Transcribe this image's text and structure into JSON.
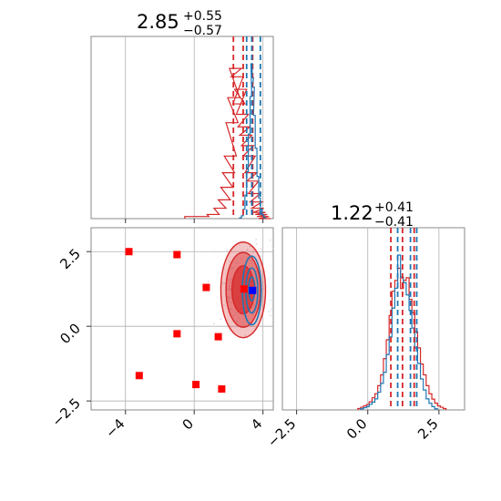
{
  "chart_data": {
    "type": "corner-plot",
    "colors": {
      "red": "#d62728",
      "blue": "#1f77b4",
      "marker_red": "#ff0000",
      "marker_blue": "#0000ff",
      "grid": "#b0b0b0"
    },
    "param1": {
      "title_main": "2.85",
      "title_plus": "+0.55",
      "title_minus": "−0.57",
      "xlim": [
        -6,
        4.6
      ],
      "ticks": [
        -4,
        0,
        4
      ],
      "tick_labels": [
        "−4",
        "0",
        "4"
      ],
      "quantiles_red": [
        2.28,
        2.85,
        3.4
      ],
      "quantiles_blue": [
        3.05,
        3.35,
        3.85
      ]
    },
    "param2": {
      "title_main": "1.22",
      "title_plus": "+0.41",
      "title_minus": "−0.41",
      "xlim": [
        -3.0,
        3.4
      ],
      "ticks": [
        -2.5,
        0.0,
        2.5
      ],
      "tick_labels": [
        "−2.5",
        "0.0",
        "2.5"
      ],
      "ylim": [
        -2.8,
        3.3
      ],
      "yticks": [
        -2.5,
        0.0,
        2.5
      ],
      "ytick_labels": [
        "−2.5",
        "0.0",
        "2.5"
      ],
      "quantiles_red": [
        0.81,
        1.22,
        1.63
      ],
      "quantiles_blue": [
        1.05,
        1.5,
        1.72
      ]
    },
    "hist1_red": {
      "x": [
        -0.2,
        0.5,
        1.1,
        1.5,
        1.75,
        1.9,
        2.0,
        2.1,
        2.2,
        2.3,
        2.4,
        2.5,
        2.6,
        2.7,
        2.8,
        2.9,
        3.0,
        3.1,
        3.2,
        3.3,
        3.4,
        3.5,
        3.6,
        3.7,
        3.8,
        3.9,
        4.0,
        4.1
      ],
      "y": [
        1,
        1,
        2,
        5,
        9,
        15,
        22,
        30,
        46,
        58,
        72,
        68,
        55,
        62,
        50,
        44,
        40,
        35,
        30,
        22,
        18,
        12,
        8,
        5,
        3,
        2,
        1,
        0
      ]
    },
    "hist1_blue": {
      "x": [
        2.7,
        2.8,
        2.9,
        3.0,
        3.1,
        3.2,
        3.3,
        3.35,
        3.4,
        3.45,
        3.5,
        3.6,
        3.7,
        3.8,
        3.9,
        4.0,
        4.1
      ],
      "y": [
        1,
        3,
        10,
        25,
        50,
        90,
        130,
        165,
        150,
        140,
        110,
        75,
        45,
        22,
        10,
        4,
        1
      ]
    },
    "hist2_red": {
      "x": [
        -0.3,
        -0.2,
        -0.1,
        0.0,
        0.1,
        0.2,
        0.3,
        0.4,
        0.5,
        0.6,
        0.7,
        0.8,
        0.9,
        1.0,
        1.1,
        1.2,
        1.3,
        1.4,
        1.5,
        1.6,
        1.7,
        1.8,
        1.9,
        2.0,
        2.1,
        2.2,
        2.3,
        2.4,
        2.5,
        2.6,
        2.7
      ],
      "y": [
        1,
        2,
        3,
        4,
        6,
        9,
        12,
        18,
        26,
        38,
        52,
        70,
        88,
        96,
        105,
        90,
        96,
        98,
        82,
        72,
        58,
        46,
        34,
        26,
        18,
        12,
        8,
        5,
        3,
        2,
        1
      ]
    },
    "hist2_blue": {
      "x": [
        -0.2,
        -0.1,
        0.0,
        0.1,
        0.2,
        0.3,
        0.4,
        0.5,
        0.6,
        0.7,
        0.8,
        0.9,
        1.0,
        1.1,
        1.2,
        1.3,
        1.4,
        1.5,
        1.6,
        1.7,
        1.8,
        1.9,
        2.0,
        2.1,
        2.2,
        2.3,
        2.4
      ],
      "y": [
        1,
        2,
        3,
        5,
        7,
        10,
        16,
        24,
        34,
        50,
        66,
        92,
        110,
        140,
        120,
        115,
        104,
        90,
        74,
        56,
        42,
        28,
        18,
        10,
        6,
        3,
        1
      ]
    },
    "red_markers": [
      [
        -3.8,
        2.5
      ],
      [
        -1.0,
        2.4
      ],
      [
        0.7,
        1.3
      ],
      [
        2.9,
        1.25
      ],
      [
        -1.0,
        -0.25
      ],
      [
        1.4,
        -0.35
      ],
      [
        -3.2,
        -1.65
      ],
      [
        0.1,
        -1.95
      ],
      [
        1.6,
        -2.1
      ]
    ],
    "blue_marker": [
      3.4,
      1.2
    ],
    "red_contours": [
      {
        "cx": 2.85,
        "cy": 1.22,
        "rx": 1.3,
        "ry": 1.6,
        "fill_opacity": 0.28
      },
      {
        "cx": 2.85,
        "cy": 1.22,
        "rx": 1.0,
        "ry": 1.25,
        "fill_opacity": 0.45
      },
      {
        "cx": 2.85,
        "cy": 1.22,
        "rx": 0.65,
        "ry": 0.8,
        "fill_opacity": 0.7
      }
    ],
    "blue_contours": [
      {
        "cx": 3.35,
        "cy": 1.2,
        "rx": 0.55,
        "ry": 1.15
      },
      {
        "cx": 3.35,
        "cy": 1.2,
        "rx": 0.35,
        "ry": 0.75
      },
      {
        "cx": 3.35,
        "cy": 1.25,
        "rx": 0.18,
        "ry": 0.4
      }
    ],
    "grid": true
  }
}
